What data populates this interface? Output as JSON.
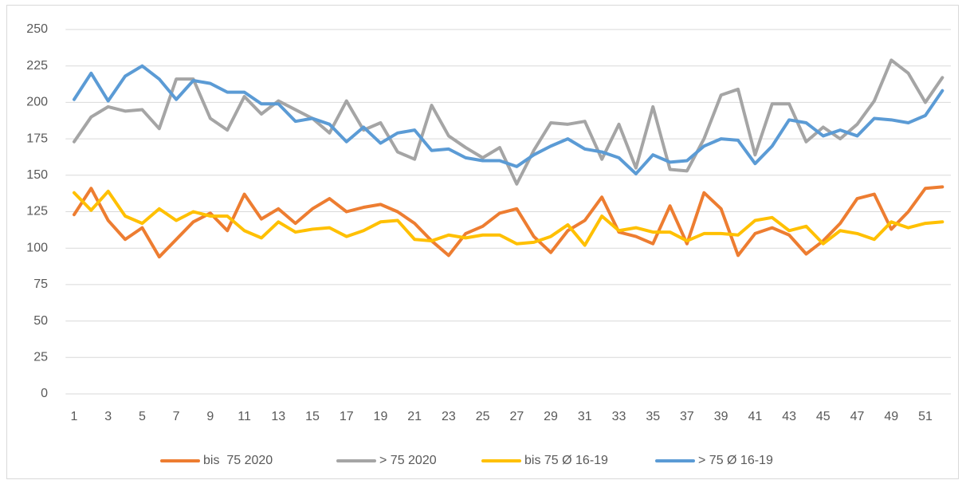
{
  "chart_data": {
    "type": "line",
    "categories": [
      "1",
      null,
      "3",
      null,
      "5",
      null,
      "7",
      null,
      "9",
      null,
      "11",
      null,
      "13",
      null,
      "15",
      null,
      "17",
      null,
      "19",
      null,
      "21",
      null,
      "23",
      null,
      "25",
      null,
      "27",
      null,
      "29",
      null,
      "31",
      null,
      "33",
      null,
      "35",
      null,
      "37",
      null,
      "39",
      null,
      "41",
      null,
      "43",
      null,
      "45",
      null,
      "47",
      null,
      "49",
      null,
      "51",
      null
    ],
    "series": [
      {
        "name": "bis  75 2020",
        "color": "#ed7d31",
        "values": [
          123,
          141,
          119,
          106,
          114,
          94,
          106,
          118,
          124,
          112,
          137,
          120,
          127,
          117,
          127,
          134,
          125,
          128,
          130,
          125,
          117,
          105,
          95,
          110,
          115,
          124,
          127,
          108,
          97,
          112,
          119,
          135,
          111,
          108,
          103,
          129,
          103,
          138,
          127,
          95,
          110,
          114,
          109,
          96,
          105,
          117,
          134,
          137,
          113,
          125,
          141,
          142
        ]
      },
      {
        "name": "> 75 2020",
        "color": "#a5a5a5",
        "values": [
          173,
          190,
          197,
          194,
          195,
          182,
          216,
          216,
          189,
          181,
          204,
          192,
          201,
          195,
          189,
          179,
          201,
          181,
          186,
          166,
          161,
          198,
          177,
          169,
          162,
          169,
          144,
          167,
          186,
          185,
          187,
          161,
          185,
          155,
          197,
          154,
          153,
          175,
          205,
          209,
          164,
          199,
          199,
          173,
          183,
          175,
          185,
          201,
          229,
          220,
          200,
          217
        ]
      },
      {
        "name": "bis 75 Ø 16-19",
        "color": "#ffc000",
        "values": [
          138,
          126,
          139,
          122,
          117,
          127,
          119,
          125,
          122,
          122,
          112,
          107,
          118,
          111,
          113,
          114,
          108,
          112,
          118,
          119,
          106,
          105,
          109,
          107,
          109,
          109,
          103,
          104,
          108,
          116,
          102,
          122,
          112,
          114,
          111,
          111,
          105,
          110,
          110,
          109,
          119,
          121,
          112,
          115,
          103,
          112,
          110,
          106,
          118,
          114,
          117,
          118
        ]
      },
      {
        "name": "> 75 Ø 16-19",
        "color": "#5b9bd5",
        "values": [
          202,
          220,
          201,
          218,
          225,
          216,
          202,
          215,
          213,
          207,
          207,
          199,
          199,
          187,
          189,
          185,
          173,
          183,
          172,
          179,
          181,
          167,
          168,
          162,
          160,
          160,
          156,
          164,
          170,
          175,
          168,
          166,
          162,
          151,
          164,
          159,
          160,
          170,
          175,
          174,
          158,
          170,
          188,
          186,
          177,
          181,
          177,
          189,
          188,
          186,
          191,
          208
        ]
      }
    ],
    "ylim": [
      0,
      250
    ],
    "yticks": [
      0,
      25,
      50,
      75,
      100,
      125,
      150,
      175,
      200,
      225,
      250
    ],
    "grid": true,
    "legend": "bottom"
  }
}
